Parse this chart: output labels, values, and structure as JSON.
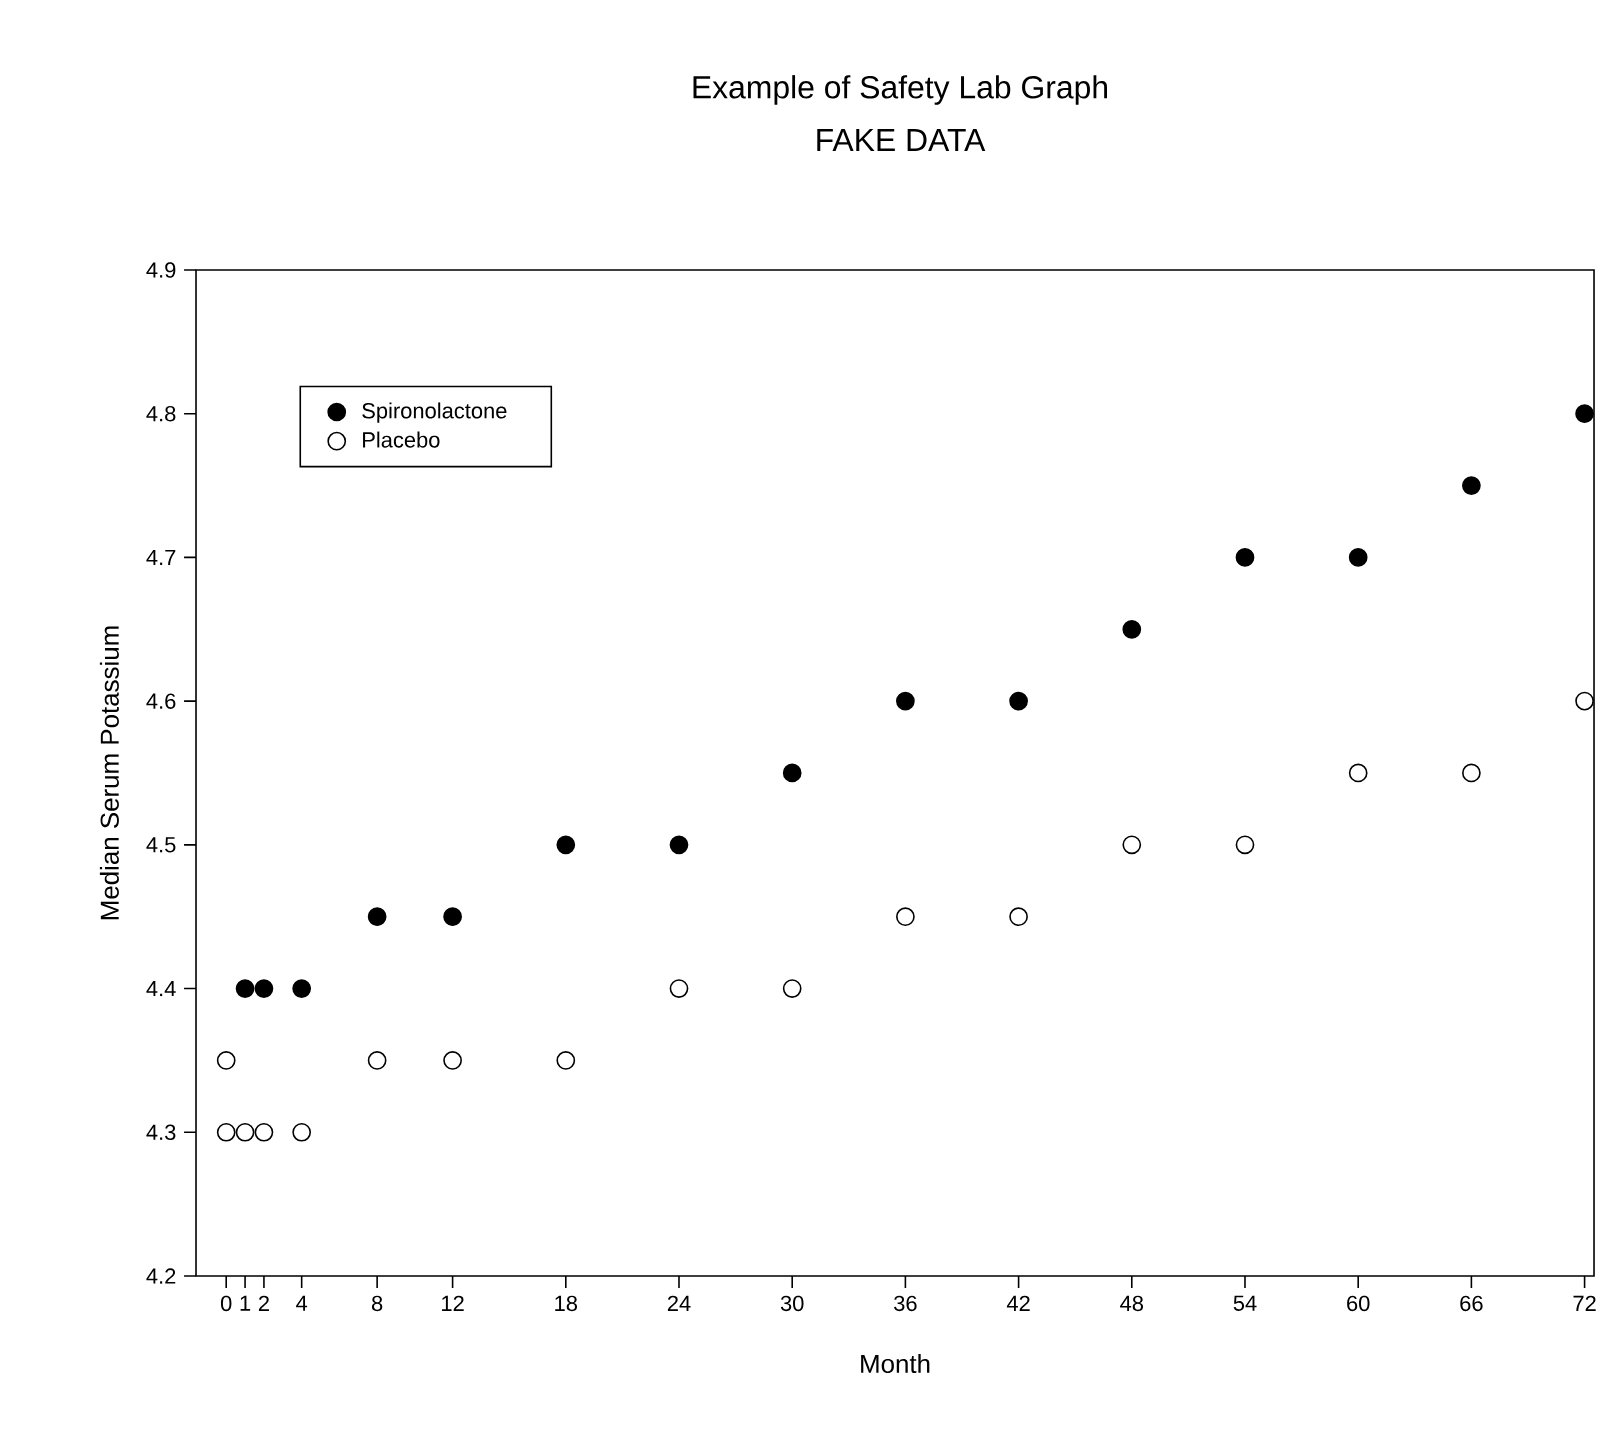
{
  "chart_data": {
    "type": "scatter",
    "title": "Example of Safety Lab Graph",
    "subtitle": "FAKE DATA",
    "xlabel": "Month",
    "ylabel": "Median Serum Potassium",
    "series": [
      {
        "name": "Spironolactone",
        "color": "#000000",
        "x": [
          1,
          2,
          4,
          8,
          12,
          18,
          24,
          30,
          36,
          42,
          48,
          54,
          60,
          66,
          72
        ],
        "values": [
          4.4,
          4.4,
          4.4,
          4.45,
          4.45,
          4.5,
          4.5,
          4.55,
          4.6,
          4.6,
          4.65,
          4.7,
          4.7,
          4.75,
          4.8
        ]
      },
      {
        "name": "Placebo",
        "color": "#ffffff",
        "x": [
          0,
          0,
          1,
          2,
          4,
          8,
          12,
          18,
          24,
          30,
          36,
          42,
          48,
          54,
          60,
          66,
          72
        ],
        "values": [
          4.35,
          4.3,
          4.3,
          4.3,
          4.3,
          4.35,
          4.35,
          4.35,
          4.4,
          4.4,
          4.45,
          4.45,
          4.5,
          4.5,
          4.55,
          4.55,
          4.6
        ]
      }
    ],
    "xlim": [
      -1.6,
      72.5
    ],
    "xticks": [
      0,
      1,
      2,
      4,
      8,
      12,
      18,
      24,
      30,
      36,
      42,
      48,
      54,
      60,
      66,
      72
    ],
    "ylim": [
      4.2,
      4.9
    ],
    "yticks": [
      4.2,
      4.3,
      4.4,
      4.5,
      4.6,
      4.7,
      4.8,
      4.9
    ],
    "grid": false,
    "legend": "top left",
    "marker": "circle"
  }
}
